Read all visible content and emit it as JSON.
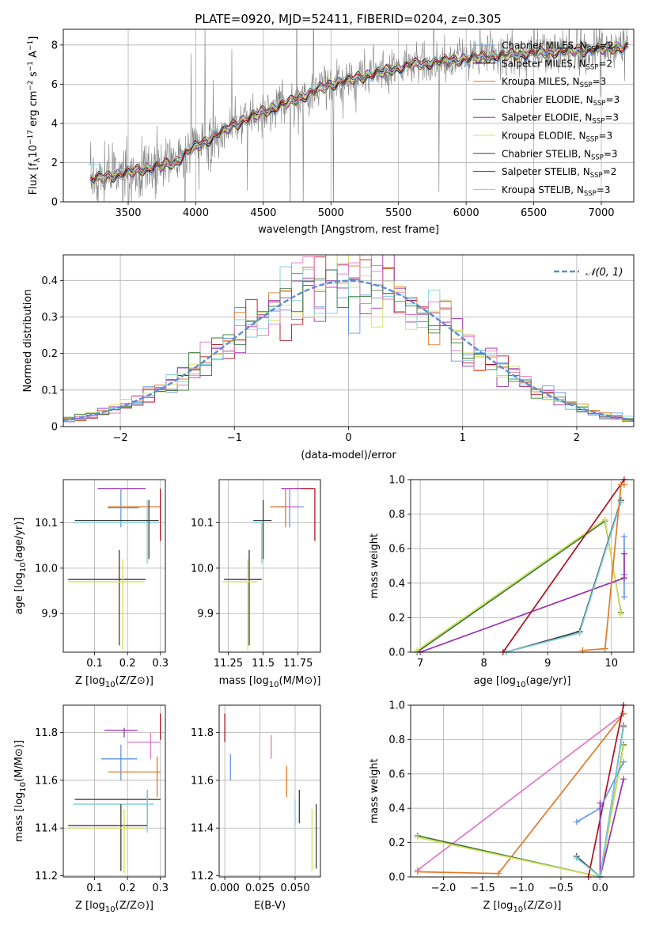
{
  "title": "PLATE=0920, MJD=52411, FIBERID=0204, z=0.305",
  "colors": {
    "Chabrier MILES": "#6495ed",
    "Salpeter MILES": "#000000",
    "Kroupa MILES": "#e07b26",
    "Chabrier ELODIE": "#3a7a3a",
    "Salpeter ELODIE": "#9b30b0",
    "Kroupa ELODIE": "#d4e157",
    "Chabrier STELIB": "#3c3c3c",
    "Salpeter STELIB": "#b01020",
    "Kroupa STELIB": "#7ecfdc",
    "pink": "#e377c2",
    "data": "#7f7f7f"
  },
  "chart_data": [
    {
      "id": "spectrum",
      "type": "line",
      "xlabel": "wavelength [Angstrom, rest frame]",
      "ylabel": "Flux [f_λ 10^-17 erg cm^-2 s^-1 A^-1]",
      "xlim": [
        3020,
        7240
      ],
      "ylim": [
        0,
        8.8
      ],
      "xticks": [
        3500,
        4000,
        4500,
        5000,
        5500,
        6000,
        6500,
        7000
      ],
      "yticks": [
        0,
        2,
        4,
        6,
        8
      ],
      "legend_position": "top-right",
      "legend": [
        {
          "label": "Chabrier MILES, N",
          "sub": "SSP",
          "tail": "=2",
          "color": "#6495ed"
        },
        {
          "label": "Salpeter MILES, N",
          "sub": "SSP",
          "tail": "=2",
          "color": "#000000"
        },
        {
          "label": "Kroupa MILES, N",
          "sub": "SSP",
          "tail": "=3",
          "color": "#e07b26"
        },
        {
          "label": "Chabrier ELODIE, N",
          "sub": "SSP",
          "tail": "=3",
          "color": "#3a7a3a"
        },
        {
          "label": "Salpeter ELODIE, N",
          "sub": "SSP",
          "tail": "=3",
          "color": "#9b30b0"
        },
        {
          "label": "Kroupa ELODIE, N",
          "sub": "SSP",
          "tail": "=3",
          "color": "#d4e157"
        },
        {
          "label": "Chabrier STELIB, N",
          "sub": "SSP",
          "tail": "=3",
          "color": "#3c3c3c"
        },
        {
          "label": "Salpeter STELIB, N",
          "sub": "SSP",
          "tail": "=2",
          "color": "#b01020"
        },
        {
          "label": "Kroupa STELIB, N",
          "sub": "SSP",
          "tail": "=3",
          "color": "#7ecfdc"
        }
      ],
      "continuum": {
        "x": [
          3200,
          3500,
          3850,
          3950,
          4100,
          4300,
          4500,
          4700,
          5000,
          5300,
          5600,
          6000,
          6500,
          7000,
          7200
        ],
        "y": [
          1.1,
          1.5,
          2.0,
          2.6,
          3.2,
          4.0,
          4.6,
          5.1,
          6.0,
          6.5,
          7.0,
          7.3,
          7.6,
          7.8,
          7.9
        ]
      }
    },
    {
      "id": "residuals",
      "type": "line",
      "xlabel": "(data-model)/error",
      "ylabel": "Normed distribution",
      "xlim": [
        -2.5,
        2.5
      ],
      "ylim": [
        0,
        0.47
      ],
      "xticks": [
        -2,
        -1,
        0,
        1,
        2
      ],
      "xticklabels": [
        "−2",
        "−1",
        "0",
        "1",
        "2"
      ],
      "yticks": [
        0.0,
        0.1,
        0.2,
        0.3,
        0.4
      ],
      "legend_position": "top-right",
      "legend": [
        {
          "label": "𝒩(0, 1)",
          "color": "#5b8bd6"
        }
      ],
      "bin_width": 0.1,
      "hist_colors": [
        "#6495ed",
        "#b01020",
        "#e07b26",
        "#9b30b0",
        "#d4e157",
        "#7ecfdc",
        "#e377c2",
        "#3a7a3a"
      ]
    },
    {
      "id": "age_vs_Z",
      "type": "scatter",
      "xlabel": "Z [log10(Z/Z⊙)]",
      "ylabel": "age  [log10(age/yr)]",
      "xlim": [
        0.005,
        0.315
      ],
      "ylim": [
        9.815,
        10.195
      ],
      "xticks": [
        0.1,
        0.2,
        0.3
      ],
      "yticks": [
        9.9,
        10.0,
        10.1
      ],
      "points": [
        {
          "x": 0.185,
          "y": 10.175,
          "xlo": 0.11,
          "xhi": 0.255,
          "ylo": 10.175,
          "yhi": 10.175,
          "color": "#9b30b0"
        },
        {
          "x": 0.18,
          "y": 10.133,
          "xlo": 0.14,
          "xhi": 0.235,
          "ylo": 10.09,
          "yhi": 10.175,
          "color": "#6495ed"
        },
        {
          "x": 0.295,
          "y": 10.135,
          "xlo": 0.14,
          "xhi": 0.3,
          "ylo": 10.135,
          "yhi": 10.135,
          "color": "#e07b26"
        },
        {
          "x": 0.3,
          "y": 10.12,
          "xlo": 0.3,
          "xhi": 0.3,
          "ylo": 10.06,
          "yhi": 10.175,
          "color": "#b01020"
        },
        {
          "x": 0.26,
          "y": 10.1,
          "xlo": 0.035,
          "xhi": 0.295,
          "ylo": 10.01,
          "yhi": 10.15,
          "color": "#7ecfdc"
        },
        {
          "x": 0.265,
          "y": 10.105,
          "xlo": 0.04,
          "xhi": 0.295,
          "ylo": 10.02,
          "yhi": 10.15,
          "color": "#3c3c3c"
        },
        {
          "x": 0.175,
          "y": 9.975,
          "xlo": 0.02,
          "xhi": 0.255,
          "ylo": 9.83,
          "yhi": 10.04,
          "color": "#3c3c3c"
        },
        {
          "x": 0.185,
          "y": 9.97,
          "xlo": 0.02,
          "xhi": 0.25,
          "ylo": 9.82,
          "yhi": 10.02,
          "color": "#d4e157"
        }
      ]
    },
    {
      "id": "age_vs_mass",
      "type": "scatter",
      "xlabel": "mass [log10(M/M⊙)]",
      "xlim": [
        11.185,
        11.91
      ],
      "ylim": [
        9.815,
        10.195
      ],
      "xticks": [
        11.25,
        11.5,
        11.75
      ],
      "yticks": [
        9.9,
        10.0,
        10.1
      ],
      "points": [
        {
          "x": 11.72,
          "y": 10.175,
          "xlo": 11.63,
          "xhi": 11.78,
          "ylo": 10.175,
          "yhi": 10.175,
          "color": "#9b30b0"
        },
        {
          "x": 11.69,
          "y": 10.135,
          "xlo": 11.59,
          "xhi": 11.79,
          "ylo": 10.09,
          "yhi": 10.175,
          "color": "#6495ed"
        },
        {
          "x": 11.66,
          "y": 10.135,
          "xlo": 11.55,
          "xhi": 11.66,
          "ylo": 10.09,
          "yhi": 10.175,
          "color": "#e07b26"
        },
        {
          "x": 11.7,
          "y": 10.135,
          "xlo": 11.66,
          "xhi": 11.76,
          "ylo": 10.135,
          "yhi": 10.135,
          "color": "#e377c2"
        },
        {
          "x": 11.87,
          "y": 10.175,
          "xlo": 11.77,
          "xhi": 11.87,
          "ylo": 10.06,
          "yhi": 10.175,
          "color": "#b01020"
        },
        {
          "x": 11.5,
          "y": 10.105,
          "xlo": 11.43,
          "xhi": 11.56,
          "ylo": 10.02,
          "yhi": 10.15,
          "color": "#3c3c3c"
        },
        {
          "x": 11.49,
          "y": 10.1,
          "xlo": 11.42,
          "xhi": 11.5,
          "ylo": 10.01,
          "yhi": 10.1,
          "color": "#7ecfdc"
        },
        {
          "x": 11.4,
          "y": 9.975,
          "xlo": 11.22,
          "xhi": 11.49,
          "ylo": 9.83,
          "yhi": 10.04,
          "color": "#3c3c3c"
        },
        {
          "x": 11.39,
          "y": 9.97,
          "xlo": 11.21,
          "xhi": 11.46,
          "ylo": 9.82,
          "yhi": 10.02,
          "color": "#d4e157"
        }
      ]
    },
    {
      "id": "mass_weight_vs_age",
      "type": "line",
      "xlabel": "age  [log10(age/yr)]",
      "ylabel": "mass weight",
      "xlim": [
        6.85,
        10.35
      ],
      "ylim": [
        0,
        1.0
      ],
      "xticks": [
        7,
        8,
        9,
        10
      ],
      "yticks": [
        0.0,
        0.2,
        0.4,
        0.6,
        0.8,
        1.0
      ],
      "series": [
        {
          "color": "#3a7a3a",
          "x": [
            6.95,
            9.9,
            10.15
          ],
          "y": [
            0.0,
            0.76,
            0.23
          ]
        },
        {
          "color": "#d4e157",
          "x": [
            6.95,
            9.9,
            10.15
          ],
          "y": [
            0.01,
            0.77,
            0.22
          ]
        },
        {
          "color": "#9b30b0",
          "x": [
            7.0,
            10.2
          ],
          "y": [
            0.0,
            0.43
          ]
        },
        {
          "color": "#b01020",
          "x": [
            8.3,
            10.2
          ],
          "y": [
            0.0,
            1.0
          ]
        },
        {
          "color": "#3c3c3c",
          "x": [
            8.35,
            9.5,
            10.15
          ],
          "y": [
            0.0,
            0.12,
            0.88
          ]
        },
        {
          "color": "#7ecfdc",
          "x": [
            8.35,
            9.5,
            10.15
          ],
          "y": [
            0.0,
            0.11,
            0.87
          ]
        },
        {
          "color": "#e07b26",
          "x": [
            9.55,
            9.9,
            10.15,
            10.2
          ],
          "y": [
            0.01,
            0.02,
            0.97,
            0.97
          ]
        },
        {
          "color": "#6495ed",
          "x": [
            10.2,
            10.2,
            10.2
          ],
          "y": [
            0.67,
            0.45,
            0.32
          ]
        },
        {
          "color": "#9b30b0",
          "x": [
            10.2,
            10.2
          ],
          "y": [
            0.57,
            0.43
          ]
        }
      ]
    },
    {
      "id": "mass_vs_Z",
      "type": "scatter",
      "xlabel": "Z [log10(Z/Z⊙)]",
      "ylabel": "mass [log10(M/M⊙)]",
      "xlim": [
        0.005,
        0.315
      ],
      "ylim": [
        11.195,
        11.915
      ],
      "xticks": [
        0.1,
        0.2,
        0.3
      ],
      "yticks": [
        11.2,
        11.4,
        11.6,
        11.8
      ],
      "points": [
        {
          "x": 0.3,
          "y": 11.82,
          "xlo": 0.3,
          "xhi": 0.3,
          "ylo": 11.77,
          "yhi": 11.88,
          "color": "#b01020"
        },
        {
          "x": 0.19,
          "y": 11.81,
          "xlo": 0.13,
          "xhi": 0.23,
          "ylo": 11.78,
          "yhi": 11.82,
          "color": "#9b30b0"
        },
        {
          "x": 0.27,
          "y": 11.76,
          "xlo": 0.2,
          "xhi": 0.3,
          "ylo": 11.69,
          "yhi": 11.8,
          "color": "#e377c2"
        },
        {
          "x": 0.18,
          "y": 11.69,
          "xlo": 0.12,
          "xhi": 0.23,
          "ylo": 11.6,
          "yhi": 11.75,
          "color": "#6495ed"
        },
        {
          "x": 0.29,
          "y": 11.635,
          "xlo": 0.14,
          "xhi": 0.3,
          "ylo": 11.53,
          "yhi": 11.7,
          "color": "#e07b26"
        },
        {
          "x": 0.26,
          "y": 11.52,
          "xlo": 0.04,
          "xhi": 0.3,
          "ylo": 11.42,
          "yhi": 11.56,
          "color": "#3c3c3c"
        },
        {
          "x": 0.26,
          "y": 11.5,
          "xlo": 0.035,
          "xhi": 0.28,
          "ylo": 11.38,
          "yhi": 11.56,
          "color": "#7ecfdc"
        },
        {
          "x": 0.18,
          "y": 11.41,
          "xlo": 0.02,
          "xhi": 0.26,
          "ylo": 11.22,
          "yhi": 11.5,
          "color": "#3c3c3c"
        },
        {
          "x": 0.19,
          "y": 11.4,
          "xlo": 0.02,
          "xhi": 0.25,
          "ylo": 11.21,
          "yhi": 11.48,
          "color": "#d4e157"
        }
      ]
    },
    {
      "id": "mass_vs_EBV",
      "type": "scatter",
      "xlabel": "E(B-V)",
      "xlim": [
        -0.004,
        0.068
      ],
      "ylim": [
        11.195,
        11.915
      ],
      "xticks": [
        0.0,
        0.025,
        0.05
      ],
      "xticklabels": [
        "0.000",
        "0.025",
        "0.050"
      ],
      "yticks": [
        11.2,
        11.4,
        11.6,
        11.8
      ],
      "points": [
        {
          "x": 0.0,
          "y": 11.82,
          "ylo": 11.76,
          "yhi": 11.88,
          "color": "#b01020"
        },
        {
          "x": 0.004,
          "y": 11.65,
          "ylo": 11.6,
          "yhi": 11.71,
          "color": "#6495ed"
        },
        {
          "x": 0.033,
          "y": 11.74,
          "ylo": 11.69,
          "yhi": 11.79,
          "color": "#e377c2"
        },
        {
          "x": 0.044,
          "y": 11.6,
          "ylo": 11.53,
          "yhi": 11.66,
          "color": "#e07b26"
        },
        {
          "x": 0.05,
          "y": 11.47,
          "ylo": 11.41,
          "yhi": 11.52,
          "color": "#7ecfdc"
        },
        {
          "x": 0.053,
          "y": 11.49,
          "ylo": 11.42,
          "yhi": 11.56,
          "color": "#3c3c3c"
        },
        {
          "x": 0.062,
          "y": 11.35,
          "ylo": 11.22,
          "yhi": 11.48,
          "color": "#d4e157"
        },
        {
          "x": 0.065,
          "y": 11.38,
          "ylo": 11.23,
          "yhi": 11.5,
          "color": "#3c3c3c"
        }
      ]
    },
    {
      "id": "mass_weight_vs_Z",
      "type": "line",
      "xlabel": "Z [log10(Z/Z⊙)]",
      "ylabel": "mass weight",
      "xlim": [
        -2.42,
        0.43
      ],
      "ylim": [
        0,
        1.0
      ],
      "xticks": [
        -2.0,
        -1.5,
        -1.0,
        -0.5,
        0.0
      ],
      "xticklabels": [
        "−2.0",
        "−1.5",
        "−1.0",
        "−0.5",
        "0.0"
      ],
      "yticks": [
        0.0,
        0.2,
        0.4,
        0.6,
        0.8,
        1.0
      ],
      "series": [
        {
          "color": "#e377c2",
          "x": [
            -2.33,
            0.3
          ],
          "y": [
            0.04,
            0.95
          ]
        },
        {
          "color": "#e07b26",
          "x": [
            -2.33,
            -1.3,
            0.3
          ],
          "y": [
            0.03,
            0.02,
            0.95
          ]
        },
        {
          "color": "#3a7a3a",
          "x": [
            -2.33,
            0.0,
            0.3
          ],
          "y": [
            0.24,
            0.0,
            0.77
          ]
        },
        {
          "color": "#d4e157",
          "x": [
            -2.33,
            0.0,
            0.3
          ],
          "y": [
            0.23,
            0.0,
            0.76
          ]
        },
        {
          "color": "#b01020",
          "x": [
            -0.15,
            0.3
          ],
          "y": [
            0.0,
            1.0
          ]
        },
        {
          "color": "#6495ed",
          "x": [
            -0.3,
            0.0,
            0.3
          ],
          "y": [
            0.32,
            0.4,
            0.67
          ]
        },
        {
          "color": "#9b30b0",
          "x": [
            0.0,
            0.0,
            0.3
          ],
          "y": [
            0.43,
            0.0,
            0.57
          ]
        },
        {
          "color": "#3c3c3c",
          "x": [
            -0.3,
            0.0,
            0.3
          ],
          "y": [
            0.12,
            0.0,
            0.88
          ]
        },
        {
          "color": "#7ecfdc",
          "x": [
            -0.3,
            0.0,
            0.3
          ],
          "y": [
            0.11,
            0.0,
            0.87
          ]
        }
      ]
    }
  ]
}
